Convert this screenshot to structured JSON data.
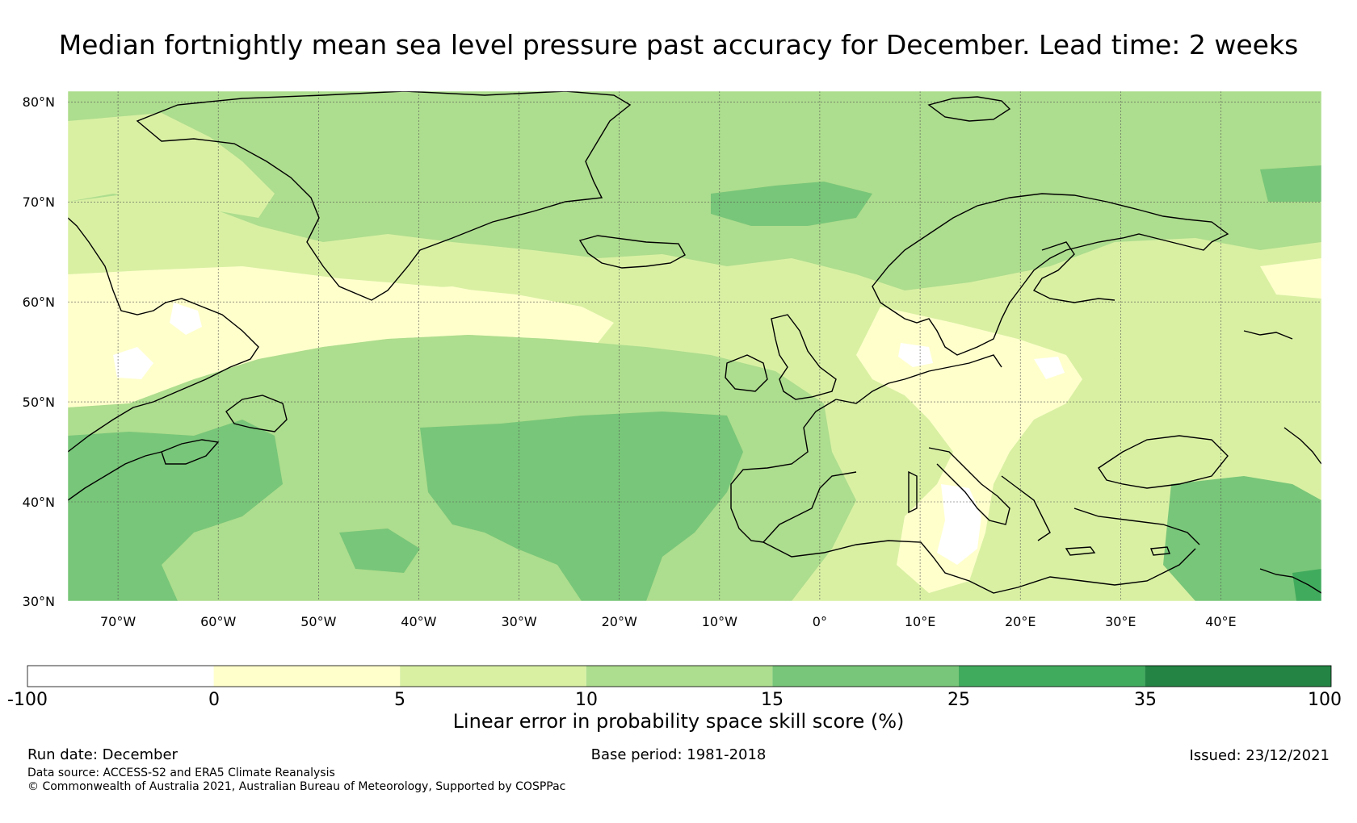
{
  "title": "Median fortnightly mean sea level pressure past accuracy for December. Lead time: 2 weeks",
  "map": {
    "lat_labels": [
      "80°N",
      "70°N",
      "60°N",
      "50°N",
      "40°N",
      "30°N"
    ],
    "lat_values": [
      80,
      70,
      60,
      50,
      40,
      30
    ],
    "lon_labels": [
      "70°W",
      "60°W",
      "50°W",
      "40°W",
      "30°W",
      "20°W",
      "10°W",
      "0°",
      "10°E",
      "20°E",
      "30°E",
      "40°E"
    ],
    "lon_values": [
      -70,
      -60,
      -50,
      -40,
      -30,
      -20,
      -10,
      0,
      10,
      20,
      30,
      40
    ],
    "lon_range": [
      -75,
      50
    ],
    "lat_range": [
      30,
      81
    ],
    "bins": [
      {
        "label": "-100",
        "from": -100,
        "to": 0,
        "color": "#ffffff"
      },
      {
        "label": "0",
        "from": 0,
        "to": 5,
        "color": "#ffffcc"
      },
      {
        "label": "5",
        "from": 5,
        "to": 10,
        "color": "#d9f0a3"
      },
      {
        "label": "10",
        "from": 10,
        "to": 15,
        "color": "#addd8e"
      },
      {
        "label": "15",
        "from": 15,
        "to": 25,
        "color": "#78c679"
      },
      {
        "label": "25",
        "from": 25,
        "to": 35,
        "color": "#41ab5d"
      },
      {
        "label": "35",
        "from": 35,
        "to": 100,
        "color": "#238443"
      }
    ],
    "colorbar_end_label": "100",
    "colorbar_title": "Linear error in probability space skill score (%)"
  },
  "footer": {
    "run_date": "Run date: December",
    "base_period": "Base period: 1981-2018",
    "issued": "Issued: 23/12/2021",
    "data_source": "Data source: ACCESS-S2 and ERA5 Climate Reanalysis",
    "copyright": "© Commonwealth of Australia 2021, Australian Bureau of Meteorology, Supported by COSPPac"
  }
}
